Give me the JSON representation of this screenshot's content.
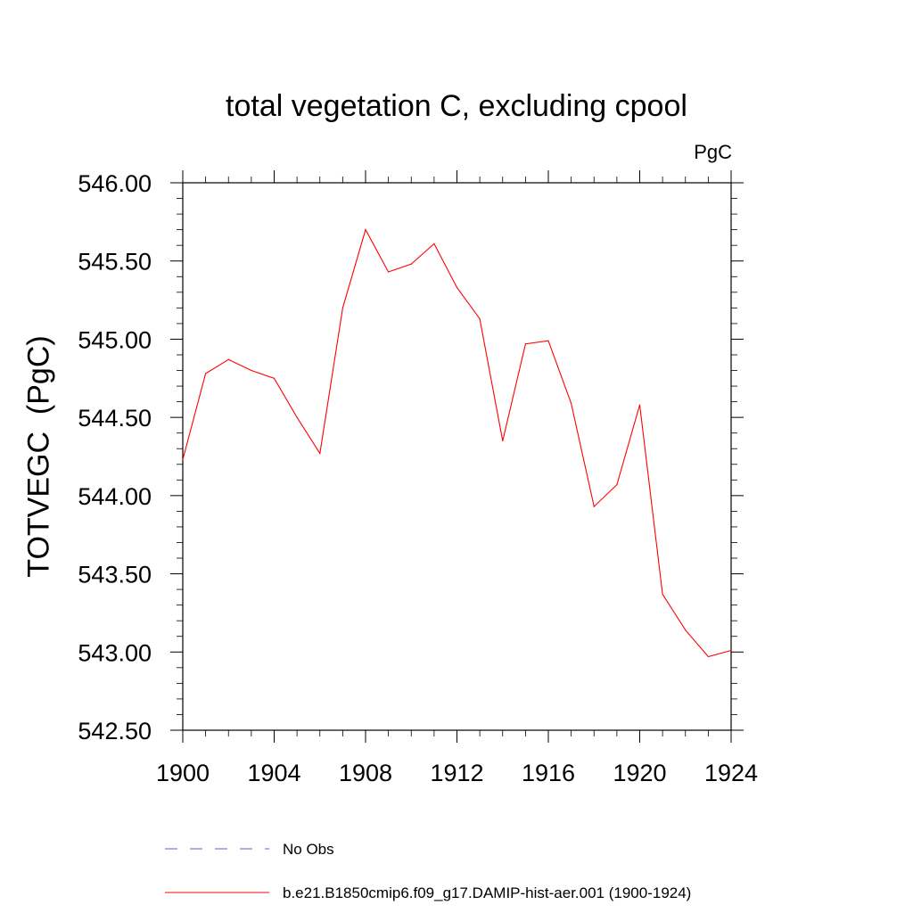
{
  "chart_data": {
    "type": "line",
    "title": "total vegetation C, excluding cpool",
    "units_label": "PgC",
    "ylabel": "TOTVEGC  (PgC)",
    "xlim": [
      1900,
      1924
    ],
    "ylim": [
      542.5,
      546.0
    ],
    "x_ticks": [
      1900,
      1904,
      1908,
      1912,
      1916,
      1920,
      1924
    ],
    "x_tick_labels": [
      "1900",
      "1904",
      "1908",
      "1912",
      "1916",
      "1920",
      "1924"
    ],
    "y_ticks": [
      542.5,
      543.0,
      543.5,
      544.0,
      544.5,
      545.0,
      545.5,
      546.0
    ],
    "y_tick_labels": [
      "542.50",
      "543.00",
      "543.50",
      "544.00",
      "544.50",
      "545.00",
      "545.50",
      "546.00"
    ],
    "grid": false,
    "legend_position": "bottom",
    "series": [
      {
        "name": "b.e21.B1850cmip6.f09_g17.DAMIP-hist-aer.001 (1900-1924)",
        "color": "#ff0000",
        "style": "solid",
        "x": [
          1900,
          1901,
          1902,
          1903,
          1904,
          1905,
          1906,
          1907,
          1908,
          1909,
          1910,
          1911,
          1912,
          1913,
          1914,
          1915,
          1916,
          1917,
          1918,
          1919,
          1920,
          1921,
          1922,
          1923,
          1924
        ],
        "y": [
          544.23,
          544.78,
          544.87,
          544.8,
          544.75,
          544.5,
          544.27,
          545.2,
          545.7,
          545.43,
          545.48,
          545.61,
          545.33,
          545.13,
          544.35,
          544.97,
          544.99,
          544.59,
          543.93,
          544.07,
          544.58,
          543.37,
          543.14,
          542.97,
          543.01
        ]
      }
    ],
    "legend": [
      {
        "label": "No Obs",
        "color": "#6a5acd",
        "style": "dashed"
      },
      {
        "label": "b.e21.B1850cmip6.f09_g17.DAMIP-hist-aer.001 (1900-1924)",
        "color": "#ff0000",
        "style": "solid"
      }
    ]
  }
}
